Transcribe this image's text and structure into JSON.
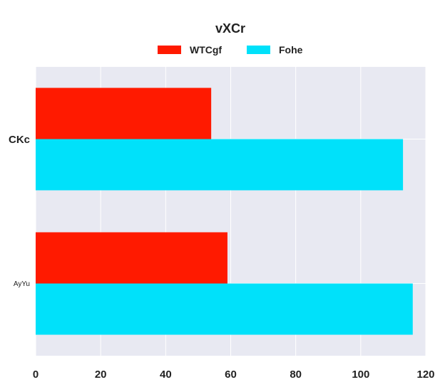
{
  "chart_data": {
    "type": "bar",
    "orientation": "horizontal",
    "title": "vXCr",
    "xlabel": "",
    "ylabel": "",
    "categories": [
      "CKc",
      "AyYu"
    ],
    "series": [
      {
        "name": "WTCgf",
        "color": "#ff1a00",
        "values": [
          54,
          59
        ]
      },
      {
        "name": "Fohe",
        "color": "#00e1fa",
        "values": [
          113,
          116
        ]
      }
    ],
    "xlim": [
      0,
      120
    ],
    "xticks": [
      "0",
      "20",
      "40",
      "60",
      "80",
      "100",
      "120"
    ],
    "grid": true,
    "legend_position": "top-center",
    "plot_background": "#e8e9f2"
  }
}
